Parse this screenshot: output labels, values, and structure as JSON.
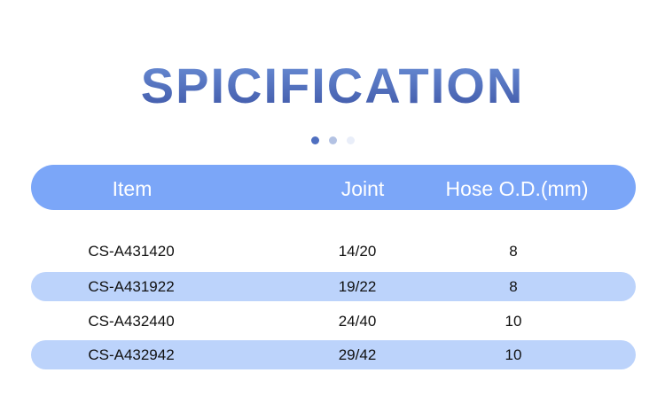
{
  "title": "SPICIFICATION",
  "pager": {
    "dots": [
      {
        "color": "#4f6fc0"
      },
      {
        "color": "#b3c2e3"
      },
      {
        "color": "#e9eef9"
      }
    ]
  },
  "colors": {
    "header_bg": "#7ba6f8",
    "stripe_bg": "#bcd3fb"
  },
  "table": {
    "headers": [
      "Item",
      "Joint",
      "Hose O.D.(mm)"
    ],
    "rows": [
      [
        "CS-A431420",
        "14/20",
        "8"
      ],
      [
        "CS-A431922",
        "19/22",
        "8"
      ],
      [
        "CS-A432440",
        "24/40",
        "10"
      ],
      [
        "CS-A432942",
        "29/42",
        "10"
      ]
    ]
  }
}
